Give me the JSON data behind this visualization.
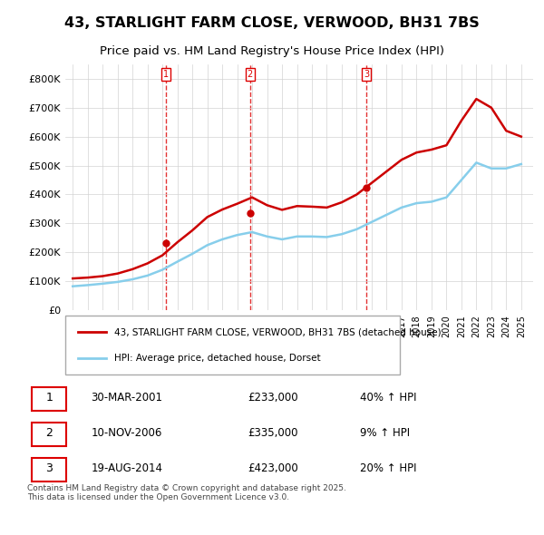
{
  "title": "43, STARLIGHT FARM CLOSE, VERWOOD, BH31 7BS",
  "subtitle": "Price paid vs. HM Land Registry's House Price Index (HPI)",
  "hpi_label": "HPI: Average price, detached house, Dorset",
  "property_label": "43, STARLIGHT FARM CLOSE, VERWOOD, BH31 7BS (detached house)",
  "sale_dates": [
    "30-MAR-2001",
    "10-NOV-2006",
    "19-AUG-2014"
  ],
  "sale_prices": [
    233000,
    335000,
    423000
  ],
  "sale_hpi_pct": [
    "40% ↑ HPI",
    "9% ↑ HPI",
    "20% ↑ HPI"
  ],
  "sale_years": [
    2001.25,
    2006.86,
    2014.64
  ],
  "vline_color": "#dd0000",
  "property_color": "#cc0000",
  "hpi_color": "#87CEEB",
  "ylim": [
    0,
    850000
  ],
  "yticks": [
    0,
    100000,
    200000,
    300000,
    400000,
    500000,
    600000,
    700000,
    800000
  ],
  "ytick_labels": [
    "£0",
    "£100K",
    "£200K",
    "£300K",
    "£400K",
    "£500K",
    "£600K",
    "£700K",
    "£800K"
  ],
  "footer": "Contains HM Land Registry data © Crown copyright and database right 2025.\nThis data is licensed under the Open Government Licence v3.0.",
  "hpi_years": [
    1995,
    1996,
    1997,
    1998,
    1999,
    2000,
    2001,
    2002,
    2003,
    2004,
    2005,
    2006,
    2007,
    2008,
    2009,
    2010,
    2011,
    2012,
    2013,
    2014,
    2015,
    2016,
    2017,
    2018,
    2019,
    2020,
    2021,
    2022,
    2023,
    2024,
    2025
  ],
  "hpi_values": [
    83000,
    87000,
    92000,
    98000,
    107000,
    120000,
    140000,
    168000,
    195000,
    225000,
    245000,
    260000,
    270000,
    255000,
    245000,
    255000,
    255000,
    253000,
    263000,
    280000,
    305000,
    330000,
    355000,
    370000,
    375000,
    390000,
    450000,
    510000,
    490000,
    490000,
    505000
  ],
  "prop_years": [
    1995,
    1996,
    1997,
    1998,
    1999,
    2000,
    2001,
    2002,
    2003,
    2004,
    2005,
    2006,
    2007,
    2008,
    2009,
    2010,
    2011,
    2012,
    2013,
    2014,
    2015,
    2016,
    2017,
    2018,
    2019,
    2020,
    2021,
    2022,
    2023,
    2024,
    2025
  ],
  "prop_values": [
    110000,
    113000,
    118000,
    127000,
    142000,
    162000,
    190000,
    235000,
    276000,
    322000,
    348000,
    368000,
    390000,
    363000,
    347000,
    360000,
    358000,
    355000,
    373000,
    400000,
    440000,
    480000,
    520000,
    545000,
    555000,
    570000,
    655000,
    730000,
    700000,
    620000,
    600000
  ]
}
